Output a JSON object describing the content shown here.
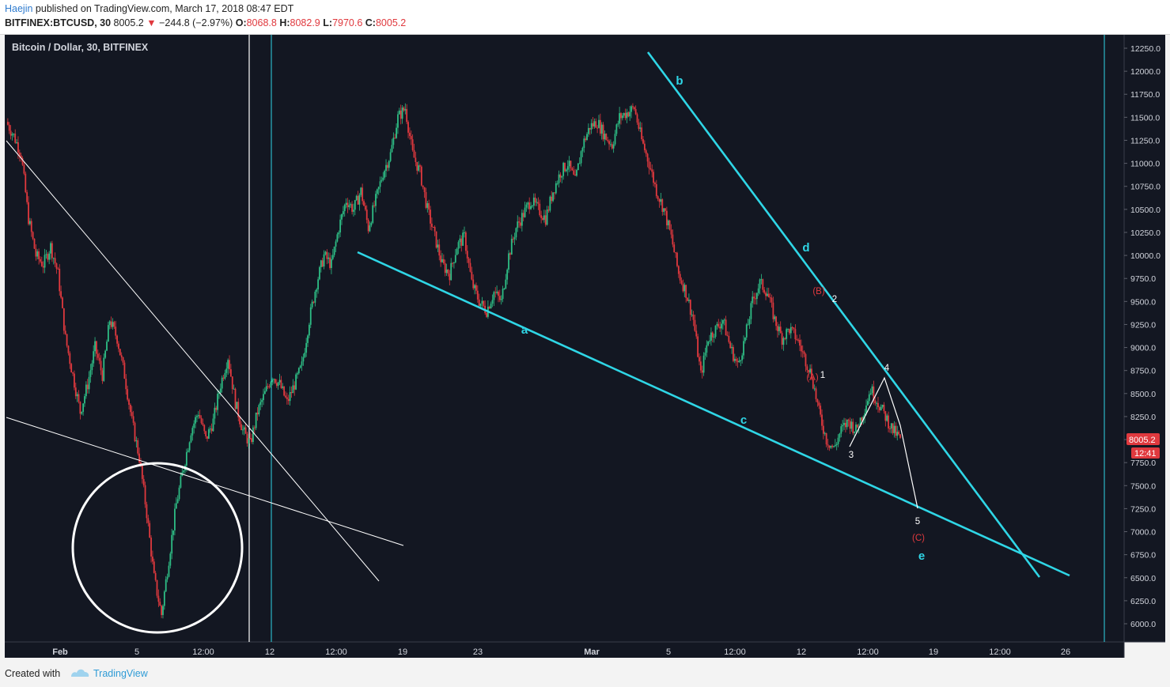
{
  "header": {
    "author": "Haejin",
    "published": "published on TradingView.com, March 17, 2018 08:47 EDT",
    "symbol": "BITFINEX:BTCUSD, 30",
    "last": "8005.2",
    "arrow": "▼",
    "change": "−244.8 (−2.97%)",
    "o_label": "O:",
    "o_value": "8068.8",
    "h_label": "H:",
    "h_value": "8082.9",
    "l_label": "L:",
    "l_value": "7970.6",
    "c_label": "C:",
    "c_value": "8005.2"
  },
  "footer": {
    "created_with": "Created with",
    "brand": "TradingView"
  },
  "colors": {
    "background": "#131722",
    "up": "#2ebd85",
    "down": "#e0393e",
    "trendline": "#2fd6e6",
    "annotation": "#ffffff",
    "label_red": "#e0393e",
    "price_tag": "#e0393e"
  },
  "chart_data": {
    "type": "candlestick",
    "title": "Bitcoin / Dollar, 30, BITFINEX",
    "ylim": [
      5850,
      12440
    ],
    "y_ticks": [
      "12250.0",
      "12000.0",
      "11750.0",
      "11500.0",
      "11250.0",
      "11000.0",
      "10750.0",
      "10500.0",
      "10250.0",
      "10000.0",
      "9750.0",
      "9500.0",
      "9250.0",
      "9000.0",
      "8750.0",
      "8500.0",
      "8250.0",
      "8000.0",
      "7750.0",
      "7500.0",
      "7250.0",
      "7000.0",
      "6750.0",
      "6500.0",
      "6250.0",
      "6000.0"
    ],
    "x_ticks": [
      "Feb",
      "5",
      "12:00",
      "12",
      "12:00",
      "19",
      "23",
      "Mar",
      "5",
      "12:00",
      "12",
      "12:00",
      "19",
      "12:00",
      "26"
    ],
    "last_price": "8005.2",
    "countdown": "12:41",
    "price_path": [
      [
        0,
        11450
      ],
      [
        1,
        11300
      ],
      [
        2,
        11100
      ],
      [
        3,
        10400
      ],
      [
        4,
        10000
      ],
      [
        5,
        9900
      ],
      [
        6,
        10100
      ],
      [
        7,
        9800
      ],
      [
        8,
        9100
      ],
      [
        9,
        8700
      ],
      [
        10,
        8300
      ],
      [
        11,
        8600
      ],
      [
        12,
        9000
      ],
      [
        13,
        8700
      ],
      [
        14,
        9300
      ],
      [
        15,
        9100
      ],
      [
        16,
        8700
      ],
      [
        17,
        8200
      ],
      [
        18,
        7800
      ],
      [
        19,
        7200
      ],
      [
        20,
        6500
      ],
      [
        21,
        6100
      ],
      [
        22,
        6700
      ],
      [
        23,
        7300
      ],
      [
        24,
        7700
      ],
      [
        25,
        8100
      ],
      [
        26,
        8300
      ],
      [
        27,
        8000
      ],
      [
        28,
        8200
      ],
      [
        29,
        8600
      ],
      [
        30,
        8900
      ],
      [
        31,
        8400
      ],
      [
        32,
        8100
      ],
      [
        33,
        7950
      ],
      [
        34,
        8300
      ],
      [
        35,
        8500
      ],
      [
        36,
        8700
      ],
      [
        37,
        8600
      ],
      [
        38,
        8400
      ],
      [
        39,
        8600
      ],
      [
        40,
        8800
      ],
      [
        41,
        9300
      ],
      [
        42,
        9700
      ],
      [
        43,
        10000
      ],
      [
        44,
        9900
      ],
      [
        45,
        10300
      ],
      [
        46,
        10600
      ],
      [
        47,
        10500
      ],
      [
        48,
        10700
      ],
      [
        49,
        10300
      ],
      [
        50,
        10600
      ],
      [
        51,
        10900
      ],
      [
        52,
        11100
      ],
      [
        53,
        11500
      ],
      [
        54,
        11600
      ],
      [
        55,
        11100
      ],
      [
        56,
        10900
      ],
      [
        57,
        10500
      ],
      [
        58,
        10200
      ],
      [
        59,
        9900
      ],
      [
        60,
        9800
      ],
      [
        61,
        10100
      ],
      [
        62,
        10200
      ],
      [
        63,
        9700
      ],
      [
        64,
        9500
      ],
      [
        65,
        9400
      ],
      [
        66,
        9600
      ],
      [
        67,
        9500
      ],
      [
        68,
        10000
      ],
      [
        69,
        10300
      ],
      [
        70,
        10450
      ],
      [
        71,
        10600
      ],
      [
        72,
        10500
      ],
      [
        73,
        10400
      ],
      [
        74,
        10700
      ],
      [
        75,
        10900
      ],
      [
        76,
        11000
      ],
      [
        77,
        10800
      ],
      [
        78,
        11200
      ],
      [
        79,
        11400
      ],
      [
        80,
        11450
      ],
      [
        81,
        11300
      ],
      [
        82,
        11200
      ],
      [
        83,
        11500
      ],
      [
        84,
        11550
      ],
      [
        85,
        11600
      ],
      [
        86,
        11250
      ],
      [
        87,
        11000
      ],
      [
        88,
        10700
      ],
      [
        89,
        10500
      ],
      [
        90,
        10200
      ],
      [
        91,
        9800
      ],
      [
        92,
        9600
      ],
      [
        93,
        9300
      ],
      [
        94,
        8700
      ],
      [
        95,
        9100
      ],
      [
        96,
        9200
      ],
      [
        97,
        9300
      ],
      [
        98,
        9000
      ],
      [
        99,
        8800
      ],
      [
        100,
        9100
      ],
      [
        101,
        9500
      ],
      [
        102,
        9700
      ],
      [
        103,
        9600
      ],
      [
        104,
        9300
      ],
      [
        105,
        9100
      ],
      [
        106,
        9200
      ],
      [
        107,
        9100
      ],
      [
        108,
        8900
      ],
      [
        109,
        8700
      ],
      [
        110,
        8300
      ],
      [
        111,
        8000
      ],
      [
        112,
        7900
      ],
      [
        113,
        8100
      ],
      [
        114,
        8200
      ],
      [
        115,
        8100
      ],
      [
        116,
        8300
      ],
      [
        117,
        8550
      ],
      [
        118,
        8400
      ],
      [
        119,
        8250
      ],
      [
        120,
        8100
      ],
      [
        121,
        8005
      ]
    ],
    "trendlines": [
      {
        "from": [
          452,
          319
        ],
        "to": [
          1352,
          728
        ]
      },
      {
        "from": [
          819,
          66
        ],
        "to": [
          1314,
          730
        ]
      }
    ],
    "white_lines": [
      {
        "from": [
          8,
          178
        ],
        "to": [
          479,
          735
        ]
      },
      {
        "from": [
          8,
          528
        ],
        "to": [
          510,
          690
        ]
      }
    ],
    "projection": [
      [
        1074,
        565
      ],
      [
        1118,
        478
      ],
      [
        1138,
        538
      ],
      [
        1160,
        643
      ]
    ],
    "wave_labels": [
      {
        "text": "b",
        "color": "cyan",
        "x": 859,
        "y": 107
      },
      {
        "text": "a",
        "color": "cyan",
        "x": 663,
        "y": 422
      },
      {
        "text": "c",
        "color": "cyan",
        "x": 940,
        "y": 536
      },
      {
        "text": "d",
        "color": "cyan",
        "x": 1019,
        "y": 318
      },
      {
        "text": "e",
        "color": "cyan",
        "x": 1165,
        "y": 708
      },
      {
        "text": "(B)",
        "color": "red",
        "x": 1035,
        "y": 372
      },
      {
        "text": "(A)",
        "color": "red",
        "x": 1027,
        "y": 481
      },
      {
        "text": "(C)",
        "color": "red",
        "x": 1161,
        "y": 684
      },
      {
        "text": "1",
        "color": "white",
        "x": 1040,
        "y": 478
      },
      {
        "text": "2",
        "color": "white",
        "x": 1055,
        "y": 382
      },
      {
        "text": "3",
        "color": "white",
        "x": 1076,
        "y": 579
      },
      {
        "text": "4",
        "color": "white",
        "x": 1121,
        "y": 469
      },
      {
        "text": "5",
        "color": "white",
        "x": 1160,
        "y": 663
      }
    ]
  }
}
